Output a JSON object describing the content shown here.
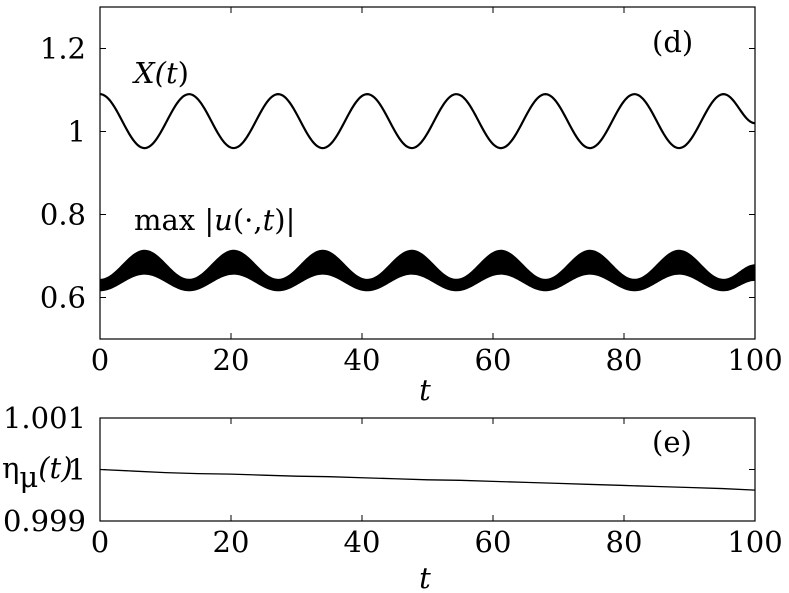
{
  "chart_data": [
    {
      "type": "line",
      "panel_label": "(d)",
      "xlabel": "t",
      "ylabel": "",
      "xlim": [
        0,
        100
      ],
      "ylim": [
        0.5,
        1.3
      ],
      "xticks": [
        0,
        20,
        40,
        60,
        80,
        100
      ],
      "yticks": [
        0.6,
        0.8,
        1,
        1.2
      ],
      "ytick_labels": [
        "0.6",
        "0.8",
        "1",
        "1.2"
      ],
      "grid": false,
      "series": [
        {
          "name": "X(t)",
          "annotation": {
            "pre": "X(",
            "var": "t",
            "post": ")"
          },
          "style": "thin oscillating line",
          "x": [
            0,
            6.8,
            13.6,
            20.4,
            27.2,
            34.0,
            40.8,
            47.6,
            54.4,
            61.2,
            68.0,
            74.8,
            81.6,
            88.4,
            95.2,
            100
          ],
          "y": [
            1.09,
            0.96,
            1.09,
            0.96,
            1.09,
            0.96,
            1.09,
            0.96,
            1.09,
            0.96,
            1.09,
            0.96,
            1.09,
            0.96,
            1.09,
            1.02
          ]
        },
        {
          "name": "max |u(·,t)|",
          "annotation": {
            "pre": "max |",
            "var": "u",
            "post": "(·,",
            "var2": "t",
            "post2": ")|"
          },
          "style": "thick band with fast oscillation",
          "x": [
            0,
            6.8,
            13.6,
            20.4,
            27.2,
            34.0,
            40.8,
            47.6,
            54.4,
            61.2,
            68.0,
            74.8,
            81.6,
            88.4,
            95.2,
            100
          ],
          "lower": [
            0.615,
            0.655,
            0.615,
            0.655,
            0.615,
            0.655,
            0.615,
            0.655,
            0.615,
            0.655,
            0.615,
            0.655,
            0.615,
            0.655,
            0.615,
            0.64
          ],
          "upper": [
            0.645,
            0.715,
            0.645,
            0.715,
            0.645,
            0.715,
            0.645,
            0.715,
            0.645,
            0.715,
            0.645,
            0.715,
            0.645,
            0.715,
            0.645,
            0.68
          ]
        }
      ]
    },
    {
      "type": "line",
      "panel_label": "(e)",
      "xlabel": "t",
      "ylabel_main": "η",
      "ylabel_sub": "μ",
      "ylabel_arg": "(t)",
      "xlim": [
        0,
        100
      ],
      "ylim": [
        0.999,
        1.001
      ],
      "xticks": [
        0,
        20,
        40,
        60,
        80,
        100
      ],
      "yticks": [
        0.999,
        1,
        1.001
      ],
      "ytick_labels": [
        "0.999",
        "1",
        "1.001"
      ],
      "grid": false,
      "series": [
        {
          "x": [
            0,
            5,
            10,
            15,
            20,
            25,
            30,
            35,
            40,
            45,
            50,
            55,
            60,
            65,
            70,
            75,
            80,
            85,
            90,
            95,
            100
          ],
          "y": [
            1.0,
            0.99997,
            0.99994,
            0.99992,
            0.99991,
            0.99989,
            0.99987,
            0.99986,
            0.99984,
            0.99982,
            0.9998,
            0.99979,
            0.99977,
            0.99975,
            0.99973,
            0.99971,
            0.99969,
            0.99967,
            0.99965,
            0.99963,
            0.9996
          ]
        }
      ]
    }
  ]
}
